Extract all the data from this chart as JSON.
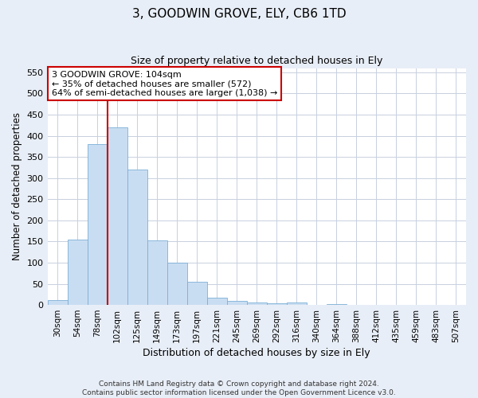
{
  "title": "3, GOODWIN GROVE, ELY, CB6 1TD",
  "subtitle": "Size of property relative to detached houses in Ely",
  "xlabel": "Distribution of detached houses by size in Ely",
  "ylabel": "Number of detached properties",
  "bin_labels": [
    "30sqm",
    "54sqm",
    "78sqm",
    "102sqm",
    "125sqm",
    "149sqm",
    "173sqm",
    "197sqm",
    "221sqm",
    "245sqm",
    "269sqm",
    "292sqm",
    "316sqm",
    "340sqm",
    "364sqm",
    "388sqm",
    "412sqm",
    "435sqm",
    "459sqm",
    "483sqm",
    "507sqm"
  ],
  "bar_values": [
    12,
    155,
    380,
    420,
    320,
    152,
    100,
    55,
    18,
    10,
    5,
    3,
    5,
    1,
    2,
    0,
    1,
    0,
    1,
    0,
    1
  ],
  "bar_color": "#c9ddf2",
  "bar_edge_color": "#7bafd6",
  "vline_color": "#cc0000",
  "vline_bin_index": 3,
  "annotation_text": "3 GOODWIN GROVE: 104sqm\n← 35% of detached houses are smaller (572)\n64% of semi-detached houses are larger (1,038) →",
  "annotation_box_color": "#ffffff",
  "annotation_box_edge_color": "#cc0000",
  "ylim": [
    0,
    560
  ],
  "yticks": [
    0,
    50,
    100,
    150,
    200,
    250,
    300,
    350,
    400,
    450,
    500,
    550
  ],
  "footnote": "Contains HM Land Registry data © Crown copyright and database right 2024.\nContains public sector information licensed under the Open Government Licence v3.0.",
  "background_color": "#e8eef7",
  "plot_bg_color": "#ffffff",
  "grid_color": "#c8d0de"
}
